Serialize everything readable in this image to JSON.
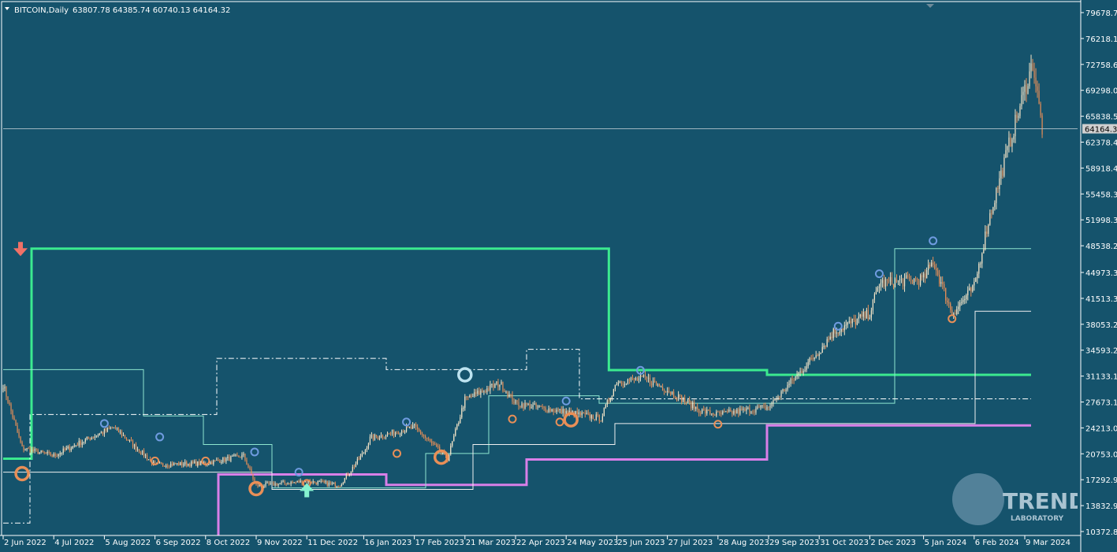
{
  "header": {
    "symbol": "BITCOIN,Daily",
    "ohlc": "63807.78 64385.74 60740.13 64164.32"
  },
  "current_price_label": "64164.32",
  "logo": {
    "word": "TREND",
    "sub": "LABORATORY"
  },
  "colors": {
    "background": "#15536c",
    "axis": "#ffffff",
    "candle_up": "#f6e6c9",
    "candle_down": "#e98f57",
    "support_level": "#e98f57",
    "resistance_level": "#6f9be0",
    "trend_line_green": "#3bea8f",
    "trend_line_violet": "#d97fe8",
    "channel_upper": "#8ee6cf",
    "channel_lower": "#f0f0f0",
    "signal_down_arrow": "#f07167",
    "signal_up_arrow": "#86f3cf"
  },
  "chart_data": {
    "type": "candlestick",
    "title": "BITCOIN,Daily",
    "ylim": [
      10372.85,
      79678.7
    ],
    "y_ticks": [
      "79678.70",
      "76218.15",
      "72758.60",
      "69298.05",
      "65838.50",
      "62378.45",
      "58918.40",
      "55458.35",
      "51998.30",
      "48538.25",
      "44973.35",
      "41513.30",
      "38053.25",
      "34593.20",
      "31133.15",
      "27673.10",
      "24213.05",
      "20753.00",
      "17292.95",
      "13832.90",
      "10372.85"
    ],
    "x_ticks": [
      "2 Jun 2022",
      "4 Jul 2022",
      "5 Aug 2022",
      "6 Sep 2022",
      "8 Oct 2022",
      "9 Nov 2022",
      "11 Dec 2022",
      "16 Jan 2023",
      "17 Feb 2023",
      "21 Mar 2023",
      "22 Apr 2023",
      "24 May 2023",
      "25 Jun 2023",
      "27 Jul 2023",
      "28 Aug 2023",
      "29 Sep 2023",
      "31 Oct 2023",
      "2 Dec 2023",
      "5 Jan 2024",
      "6 Feb 2024",
      "9 Mar 2024"
    ],
    "last_close": 64164.32,
    "price_path": [
      [
        "2 Jun 2022",
        30000
      ],
      [
        "14 Jun 2022",
        21500
      ],
      [
        "4 Jul 2022",
        20500
      ],
      [
        "26 Jul 2022",
        22800
      ],
      [
        "11 Aug 2022",
        24300
      ],
      [
        "6 Sep 2022",
        19300
      ],
      [
        "8 Oct 2022",
        19500
      ],
      [
        "1 Nov 2022",
        20500
      ],
      [
        "9 Nov 2022",
        16500
      ],
      [
        "11 Dec 2022",
        17100
      ],
      [
        "1 Jan 2023",
        16600
      ],
      [
        "16 Jan 2023",
        20900
      ],
      [
        "20 Jan 2023",
        22800
      ],
      [
        "17 Feb 2023",
        24300
      ],
      [
        "10 Mar 2023",
        20100
      ],
      [
        "21 Mar 2023",
        28000
      ],
      [
        "12 Apr 2023",
        30200
      ],
      [
        "22 Apr 2023",
        27500
      ],
      [
        "24 May 2023",
        26300
      ],
      [
        "15 Jun 2023",
        25500
      ],
      [
        "25 Jun 2023",
        30400
      ],
      [
        "13 Jul 2023",
        30800
      ],
      [
        "27 Jul 2023",
        29300
      ],
      [
        "17 Aug 2023",
        26500
      ],
      [
        "28 Aug 2023",
        26000
      ],
      [
        "29 Sep 2023",
        27000
      ],
      [
        "31 Oct 2023",
        34500
      ],
      [
        "9 Nov 2023",
        37000
      ],
      [
        "2 Dec 2023",
        39500
      ],
      [
        "8 Dec 2023",
        43500
      ],
      [
        "5 Jan 2024",
        44100
      ],
      [
        "11 Jan 2024",
        46500
      ],
      [
        "23 Jan 2024",
        39500
      ],
      [
        "6 Feb 2024",
        43000
      ],
      [
        "15 Feb 2024",
        51800
      ],
      [
        "28 Feb 2024",
        62000
      ],
      [
        "14 Mar 2024",
        73000
      ],
      [
        "20 Mar 2024",
        64164.32
      ]
    ],
    "levels": [
      {
        "name": "",
        "price": 48150,
        "from": "2 Jun 2022",
        "to": "20 Jun 2023"
      },
      {
        "name": "",
        "price": 31300,
        "from": "20 Jun 2023",
        "to": "30 Mar 2024"
      },
      {
        "name": "",
        "price": 24550,
        "from": "28 Sep 2023",
        "to": "30 Mar 2024"
      },
      {
        "name": "",
        "price": 20000,
        "from": "19 Apr 2023",
        "to": "28 Sep 2023"
      }
    ],
    "signals": [
      {
        "type": "down-arrow",
        "date": "2 Jun 2022",
        "price": 48000
      },
      {
        "type": "up-arrow",
        "date": "11 Dec 2022",
        "price": 16000
      }
    ],
    "grid": false,
    "legend": "none"
  }
}
